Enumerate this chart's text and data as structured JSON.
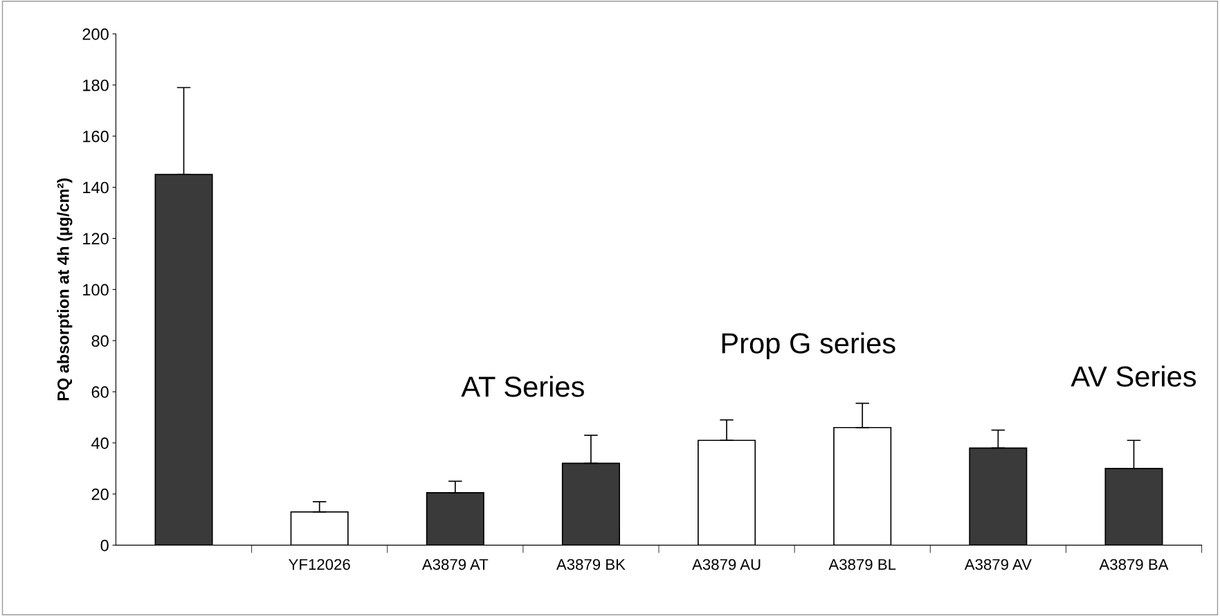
{
  "chart_data": {
    "type": "bar",
    "ylabel": "PQ absorption at 4h (µg/cm²)",
    "categories": [
      null,
      "YF12026",
      "A3879 AT",
      "A3879 BK",
      "A3879 AU",
      "A3879 BL",
      "A3879 AV",
      "A3879 BA"
    ],
    "values": [
      145,
      13,
      20.5,
      32,
      41,
      46,
      38,
      30
    ],
    "errors": [
      [
        145,
        179
      ],
      [
        13,
        17
      ],
      [
        20.5,
        25
      ],
      [
        32,
        43
      ],
      [
        41,
        49
      ],
      [
        46,
        55.5
      ],
      [
        38,
        45
      ],
      [
        30,
        41
      ]
    ],
    "colors": [
      "#3a3a3a",
      "#ffffff",
      "#3a3a3a",
      "#3a3a3a",
      "#ffffff",
      "#ffffff",
      "#3a3a3a",
      "#3a3a3a"
    ],
    "ylim": [
      0,
      200
    ],
    "yticks": [
      0,
      20,
      40,
      60,
      80,
      100,
      120,
      140,
      160,
      180,
      200
    ],
    "annotations": [
      "AT Series",
      "Prop G series",
      "AV Series"
    ],
    "grid": false,
    "legend": false
  }
}
